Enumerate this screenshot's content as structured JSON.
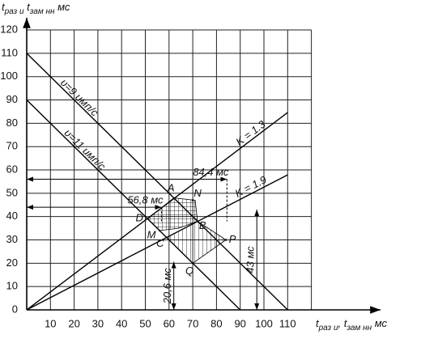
{
  "chart_data": {
    "type": "line",
    "y_label": [
      {
        "text": "t"
      },
      {
        "text": "раз и",
        "sub": true
      },
      {
        "text": " t"
      },
      {
        "text": "зам нн",
        "sub": true
      },
      {
        "text": " мс"
      }
    ],
    "x_label": [
      {
        "text": "t"
      },
      {
        "text": "раз и",
        "sub": true
      },
      {
        "text": ", t"
      },
      {
        "text": "зам нн",
        "sub": true
      },
      {
        "text": " мс"
      }
    ],
    "xlim": [
      0,
      120
    ],
    "ylim": [
      0,
      120
    ],
    "xticks": [
      10,
      20,
      30,
      40,
      50,
      60,
      70,
      80,
      90,
      100,
      110
    ],
    "yticks": [
      0,
      10,
      20,
      30,
      40,
      50,
      60,
      70,
      80,
      90,
      100,
      110,
      120
    ],
    "grid": true,
    "series": [
      {
        "name": "υ=9 имп/с",
        "color": "#000000",
        "x": [
          0,
          110
        ],
        "values": [
          110,
          0
        ]
      },
      {
        "name": "υ=11 имп/с",
        "color": "#000000",
        "x": [
          0,
          90
        ],
        "values": [
          90,
          0
        ]
      },
      {
        "name": "K = 1.3",
        "color": "#000000",
        "x": [
          0,
          110
        ],
        "values": [
          0,
          84.6
        ]
      },
      {
        "name": "K = 1.9",
        "color": "#000000",
        "x": [
          0,
          110
        ],
        "values": [
          0,
          57.9
        ]
      }
    ],
    "points": [
      {
        "label": "A",
        "x": 62.2,
        "y": 47.8
      },
      {
        "label": "N",
        "x": 70,
        "y": 47
      },
      {
        "label": "B",
        "x": 72.1,
        "y": 37.9
      },
      {
        "label": "D",
        "x": 50.9,
        "y": 39.1
      },
      {
        "label": "M",
        "x": 56,
        "y": 34
      },
      {
        "label": "C",
        "x": 59,
        "y": 31
      },
      {
        "label": "P",
        "x": 84,
        "y": 30
      },
      {
        "label": "Q",
        "x": 70,
        "y": 20
      }
    ],
    "dimensions": [
      {
        "value": 84.4,
        "label": "84,4 мс",
        "dir": "x"
      },
      {
        "value": 56.8,
        "label": "56,8 мс",
        "dir": "x"
      },
      {
        "value": 43,
        "label": "43 мс",
        "dir": "y"
      },
      {
        "value": 20.6,
        "label": "20,6 мс",
        "dir": "y"
      }
    ]
  }
}
